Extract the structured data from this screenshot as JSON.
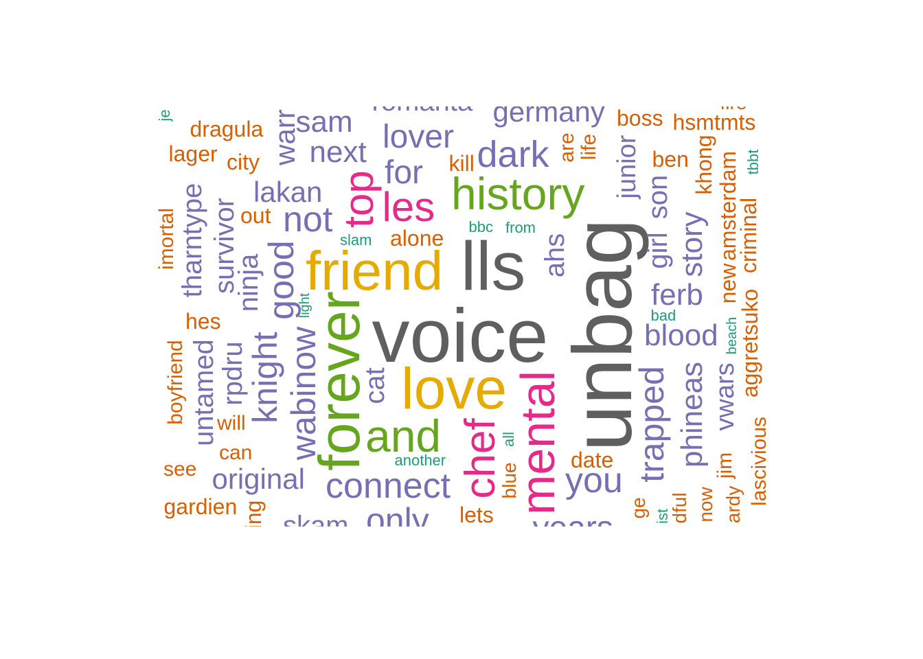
{
  "colors": {
    "gray": "#5f5f5f",
    "gold": "#e6ab02",
    "green": "#66a61e",
    "pink": "#e7298a",
    "purple": "#7570b3",
    "orange": "#d95f02",
    "teal": "#1b9e77"
  },
  "words": [
    {
      "text": "voice",
      "color": "gray"
    },
    {
      "text": "unbag",
      "color": "gray"
    },
    {
      "text": "lls",
      "color": "gray"
    },
    {
      "text": "friend",
      "color": "gold"
    },
    {
      "text": "love",
      "color": "gold"
    },
    {
      "text": "history",
      "color": "green"
    },
    {
      "text": "forever",
      "color": "green"
    },
    {
      "text": "and",
      "color": "green"
    },
    {
      "text": "mental",
      "color": "pink"
    },
    {
      "text": "chef",
      "color": "pink"
    },
    {
      "text": "top",
      "color": "pink"
    },
    {
      "text": "les",
      "color": "pink"
    },
    {
      "text": "lover",
      "color": "purple"
    },
    {
      "text": "for",
      "color": "purple"
    },
    {
      "text": "dark",
      "color": "purple"
    },
    {
      "text": "germany",
      "color": "purple"
    },
    {
      "text": "next",
      "color": "purple"
    },
    {
      "text": "sam",
      "color": "purple"
    },
    {
      "text": "warr",
      "color": "purple"
    },
    {
      "text": "lakan",
      "color": "purple"
    },
    {
      "text": "not",
      "color": "purple"
    },
    {
      "text": "good",
      "color": "purple"
    },
    {
      "text": "ninja",
      "color": "purple"
    },
    {
      "text": "survivor",
      "color": "purple"
    },
    {
      "text": "tharntype",
      "color": "purple"
    },
    {
      "text": "knight",
      "color": "purple"
    },
    {
      "text": "wabinow",
      "color": "purple"
    },
    {
      "text": "rpdru",
      "color": "purple"
    },
    {
      "text": "untamed",
      "color": "purple"
    },
    {
      "text": "original",
      "color": "purple"
    },
    {
      "text": "connect",
      "color": "purple"
    },
    {
      "text": "cat",
      "color": "purple"
    },
    {
      "text": "only",
      "color": "purple"
    },
    {
      "text": "skam",
      "color": "purple"
    },
    {
      "text": "you",
      "color": "purple"
    },
    {
      "text": "years",
      "color": "purple"
    },
    {
      "text": "trapped",
      "color": "purple"
    },
    {
      "text": "ahs",
      "color": "purple"
    },
    {
      "text": "junior",
      "color": "purple"
    },
    {
      "text": "ferb",
      "color": "purple"
    },
    {
      "text": "blood",
      "color": "purple"
    },
    {
      "text": "girl",
      "color": "purple"
    },
    {
      "text": "son",
      "color": "purple"
    },
    {
      "text": "story",
      "color": "purple"
    },
    {
      "text": "phineas",
      "color": "purple"
    },
    {
      "text": "vwars",
      "color": "purple"
    },
    {
      "text": "romanta",
      "color": "purple"
    },
    {
      "text": "dragula",
      "color": "orange"
    },
    {
      "text": "lager",
      "color": "orange"
    },
    {
      "text": "city",
      "color": "orange"
    },
    {
      "text": "out",
      "color": "orange"
    },
    {
      "text": "imortal",
      "color": "orange"
    },
    {
      "text": "hes",
      "color": "orange"
    },
    {
      "text": "boyfriend",
      "color": "orange"
    },
    {
      "text": "will",
      "color": "orange"
    },
    {
      "text": "can",
      "color": "orange"
    },
    {
      "text": "see",
      "color": "orange"
    },
    {
      "text": "gardien",
      "color": "orange"
    },
    {
      "text": "ing",
      "color": "orange"
    },
    {
      "text": "alone",
      "color": "orange"
    },
    {
      "text": "kill",
      "color": "orange"
    },
    {
      "text": "are",
      "color": "orange"
    },
    {
      "text": "life",
      "color": "orange"
    },
    {
      "text": "boss",
      "color": "orange"
    },
    {
      "text": "hsmtmts",
      "color": "orange"
    },
    {
      "text": "fire",
      "color": "orange"
    },
    {
      "text": "ben",
      "color": "orange"
    },
    {
      "text": "khong",
      "color": "orange"
    },
    {
      "text": "amsterdam",
      "color": "orange"
    },
    {
      "text": "new",
      "color": "orange"
    },
    {
      "text": "criminal",
      "color": "orange"
    },
    {
      "text": "aggretsuko",
      "color": "orange"
    },
    {
      "text": "jim",
      "color": "orange"
    },
    {
      "text": "lascivious",
      "color": "orange"
    },
    {
      "text": "date",
      "color": "orange"
    },
    {
      "text": "lets",
      "color": "orange"
    },
    {
      "text": "blue",
      "color": "orange"
    },
    {
      "text": "ge",
      "color": "orange"
    },
    {
      "text": "dful",
      "color": "orange"
    },
    {
      "text": "now",
      "color": "orange"
    },
    {
      "text": "ardy",
      "color": "orange"
    },
    {
      "text": "je",
      "color": "teal"
    },
    {
      "text": "slam",
      "color": "teal"
    },
    {
      "text": "bbc",
      "color": "teal"
    },
    {
      "text": "from",
      "color": "teal"
    },
    {
      "text": "light",
      "color": "teal"
    },
    {
      "text": "another",
      "color": "teal"
    },
    {
      "text": "all",
      "color": "teal"
    },
    {
      "text": "bad",
      "color": "teal"
    },
    {
      "text": "beach",
      "color": "teal"
    },
    {
      "text": "tbbt",
      "color": "teal"
    },
    {
      "text": "ist",
      "color": "teal"
    }
  ]
}
